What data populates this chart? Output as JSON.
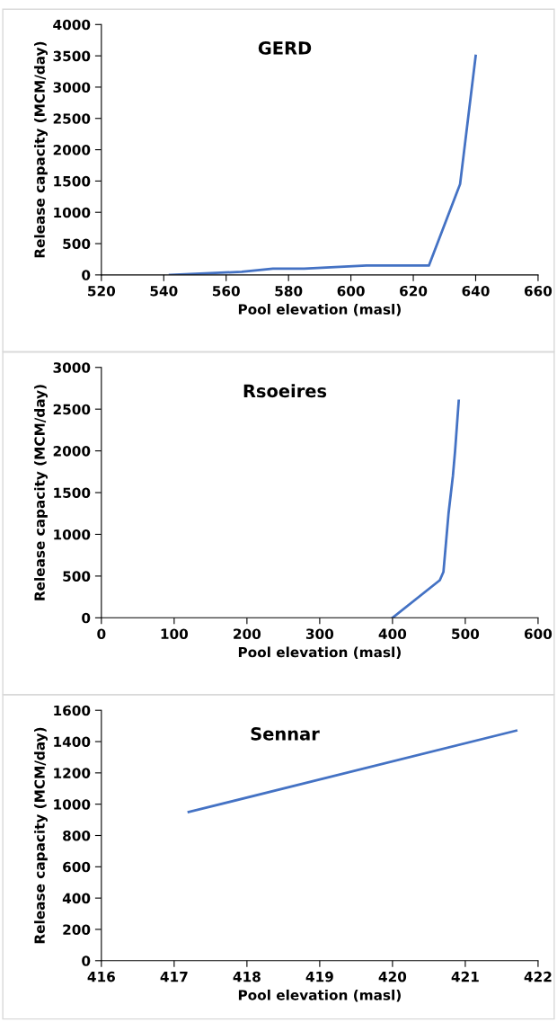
{
  "chart_data": [
    {
      "type": "line",
      "title": "GERD",
      "xlabel": "Pool elevation (masl)",
      "ylabel": "Release capacity (MCM/day)",
      "x": [
        542,
        565,
        575,
        585,
        605,
        615,
        625,
        635,
        640
      ],
      "series": [
        {
          "color": "#4472c4",
          "values": [
            0,
            50,
            100,
            100,
            150,
            150,
            150,
            1450,
            3500
          ]
        }
      ],
      "xlim": [
        520,
        660
      ],
      "xticks": [
        520,
        540,
        560,
        580,
        600,
        620,
        640,
        660
      ],
      "ylim": [
        0,
        4000
      ],
      "yticks": [
        0,
        500,
        1000,
        1500,
        2000,
        2500,
        3000,
        3500,
        4000
      ],
      "grid": false
    },
    {
      "type": "line",
      "title": "Rsoeires",
      "xlabel": "Pool elevation (masl)",
      "ylabel": "Release capacity (MCM/day)",
      "x": [
        400,
        465,
        470,
        474,
        477,
        483,
        486,
        491
      ],
      "series": [
        {
          "color": "#4472c4",
          "values": [
            0,
            450,
            550,
            950,
            1250,
            1700,
            2000,
            2600
          ]
        }
      ],
      "xlim": [
        0,
        600
      ],
      "xticks": [
        0,
        100,
        200,
        300,
        400,
        500,
        600
      ],
      "ylim": [
        0,
        3000
      ],
      "yticks": [
        0,
        500,
        1000,
        1500,
        2000,
        2500,
        3000
      ],
      "grid": false
    },
    {
      "type": "line",
      "title": "Sennar",
      "xlabel": "Pool elevation (masl)",
      "ylabel": "Release capacity (MCM/day)",
      "x": [
        417.2,
        421.7
      ],
      "series": [
        {
          "color": "#4472c4",
          "values": [
            950,
            1470
          ]
        }
      ],
      "xlim": [
        416,
        422
      ],
      "xticks": [
        416,
        417,
        418,
        419,
        420,
        421,
        422
      ],
      "ylim": [
        0,
        1600
      ],
      "yticks": [
        0,
        200,
        400,
        600,
        800,
        1000,
        1200,
        1400,
        1600
      ],
      "grid": false
    }
  ]
}
